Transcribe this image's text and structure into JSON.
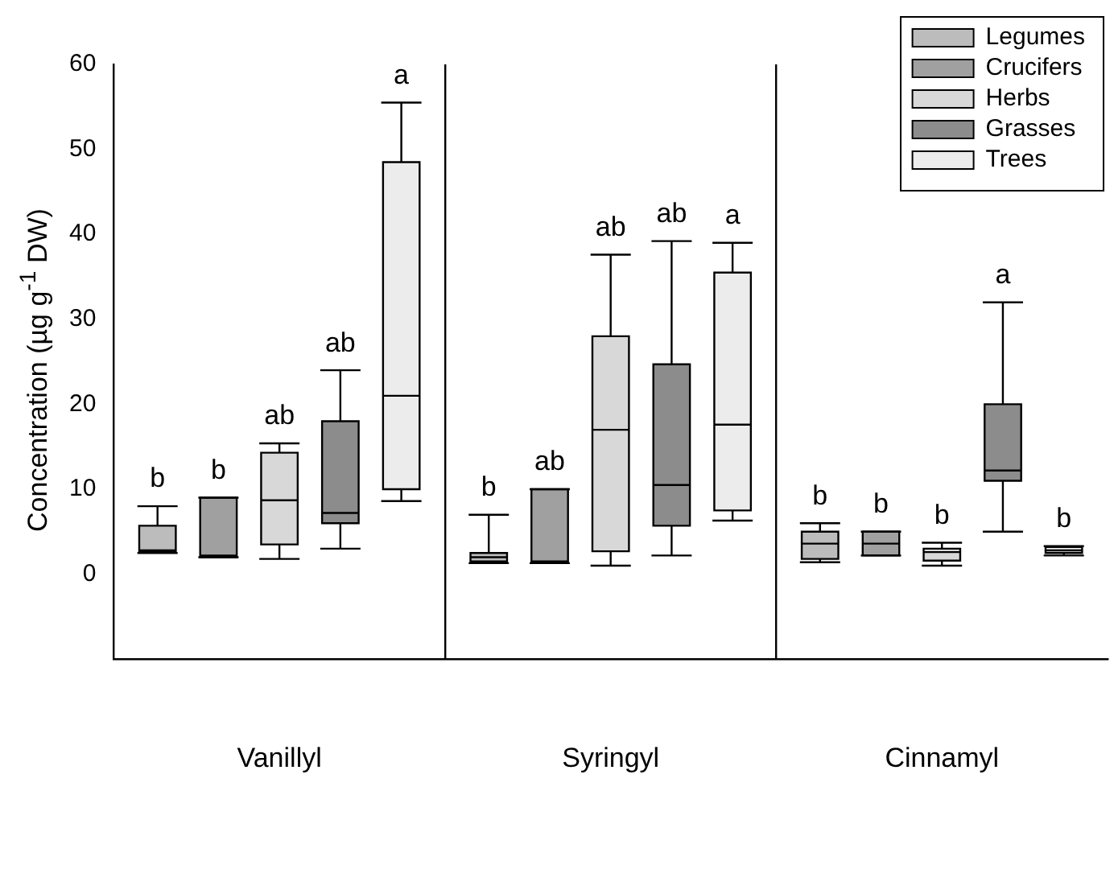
{
  "chart_data": {
    "type": "box",
    "ylabel": "Concentration (µg g$^{-1}$ DW)",
    "categories": [
      "Vanillyl",
      "Syringyl",
      "Cinnamyl"
    ],
    "ylim": [
      -10,
      60
    ],
    "yticks": [
      0,
      10,
      20,
      30,
      40,
      50,
      60
    ],
    "grid": "x",
    "legend": "top right",
    "series": [
      {
        "name": "Legumes",
        "color": "#bcbcbc",
        "boxes": [
          {
            "low": 2.5,
            "q1": 2.7,
            "median": 2.8,
            "q3": 5.7,
            "high": 8
          },
          {
            "low": 1.3,
            "q1": 1.5,
            "median": 2,
            "q3": 2.5,
            "high": 7
          },
          {
            "low": 1.4,
            "q1": 1.8,
            "median": 3.6,
            "q3": 5,
            "high": 6
          }
        ],
        "value_labels": [
          "b",
          "b",
          "b"
        ]
      },
      {
        "name": "Crucifers",
        "color": "#a0a0a0",
        "boxes": [
          {
            "low": 2,
            "q1": 2,
            "median": 2.2,
            "q3": 9,
            "high": 9
          },
          {
            "low": 1.3,
            "q1": 1.3,
            "median": 1.5,
            "q3": 10,
            "high": 10
          },
          {
            "low": 2.2,
            "q1": 2.2,
            "median": 3.6,
            "q3": 5,
            "high": 5
          }
        ],
        "value_labels": [
          "b",
          "ab",
          "b"
        ]
      },
      {
        "name": "Herbs",
        "color": "#d8d8d8",
        "boxes": [
          {
            "low": 1.8,
            "q1": 3.5,
            "median": 8.7,
            "q3": 14.3,
            "high": 15.4
          },
          {
            "low": 1,
            "q1": 2.7,
            "median": 17,
            "q3": 28,
            "high": 37.6
          },
          {
            "low": 1,
            "q1": 1.6,
            "median": 2.6,
            "q3": 3,
            "high": 3.7
          }
        ],
        "value_labels": [
          "ab",
          "ab",
          "b"
        ]
      },
      {
        "name": "Grasses",
        "color": "#8c8c8c",
        "boxes": [
          {
            "low": 3,
            "q1": 6,
            "median": 7.2,
            "q3": 18,
            "high": 24
          },
          {
            "low": 2.2,
            "q1": 5.7,
            "median": 10.5,
            "q3": 24.7,
            "high": 39.2
          },
          {
            "low": 5,
            "q1": 11,
            "median": 12.2,
            "q3": 20,
            "high": 32
          }
        ],
        "value_labels": [
          "ab",
          "ab",
          "a"
        ]
      },
      {
        "name": "Trees",
        "color": "#ececec",
        "boxes": [
          {
            "low": 8.6,
            "q1": 10,
            "median": 21,
            "q3": 48.5,
            "high": 55.5
          },
          {
            "low": 6.3,
            "q1": 7.5,
            "median": 17.6,
            "q3": 35.5,
            "high": 39
          },
          {
            "low": 2.2,
            "q1": 2.5,
            "median": 2.8,
            "q3": 3.2,
            "high": 3.3
          }
        ],
        "value_labels": [
          "a",
          "a",
          "b"
        ]
      }
    ]
  }
}
